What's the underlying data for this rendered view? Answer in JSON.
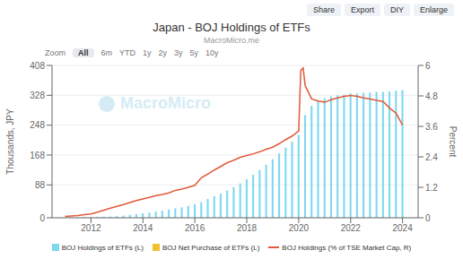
{
  "chart_data": {
    "type": "bar",
    "title": "Japan - BOJ Holdings of ETFs",
    "subtitle": "MacroMicro.me",
    "ylabel": "Thousands, JPY",
    "y2label": "Percent",
    "annotations": [
      [
        "Share",
        "Export",
        "DIY",
        "Enlarge"
      ],
      [
        "Zoom",
        "All",
        "6m",
        "YTD",
        "1y",
        "2y",
        "3y",
        "5y",
        "10y"
      ],
      [
        "MacroMicro"
      ]
    ],
    "xlim": [
      2010.5,
      2024.6
    ],
    "xticks": [
      2012,
      2014,
      2016,
      2018,
      2020,
      2022,
      2024
    ],
    "ylim": [
      0,
      408
    ],
    "yticks": [
      0,
      88,
      168,
      248,
      328,
      408
    ],
    "y2lim": [
      0,
      6.0
    ],
    "y2ticks": [
      0,
      1.2,
      2.4,
      3.6,
      4.8,
      6
    ],
    "grid": true,
    "series": [
      {
        "name": "BOJ Holdings of ETFs (L)",
        "color": "#7dd8f0",
        "type": "bar",
        "x": [
          2011.0,
          2011.25,
          2011.5,
          2011.75,
          2012.0,
          2012.25,
          2012.5,
          2012.75,
          2013.0,
          2013.25,
          2013.5,
          2013.75,
          2014.0,
          2014.25,
          2014.5,
          2014.75,
          2015.0,
          2015.25,
          2015.5,
          2015.75,
          2016.0,
          2016.25,
          2016.5,
          2016.75,
          2017.0,
          2017.25,
          2017.5,
          2017.75,
          2018.0,
          2018.25,
          2018.5,
          2018.75,
          2019.0,
          2019.25,
          2019.5,
          2019.75,
          2020.0,
          2020.25,
          2020.5,
          2020.75,
          2021.0,
          2021.25,
          2021.5,
          2021.75,
          2022.0,
          2022.25,
          2022.5,
          2022.75,
          2023.0,
          2023.25,
          2023.5,
          2023.75,
          2024.0
        ],
        "values": [
          0.5,
          0.8,
          1.0,
          1.5,
          2.0,
          2.5,
          3.0,
          3.5,
          4.5,
          6.0,
          8.0,
          10.0,
          12.0,
          14.0,
          16.5,
          19.0,
          22.0,
          25.0,
          28.0,
          32.0,
          36.0,
          42.0,
          50.0,
          58.0,
          65.0,
          73.0,
          82.0,
          92.0,
          103.0,
          115.0,
          128.0,
          142.0,
          157.0,
          172.0,
          188.0,
          204.0,
          222.0,
          275.0,
          300.0,
          315.0,
          320.0,
          325.0,
          328.0,
          330.0,
          333.0,
          333.0,
          335.0,
          335.0,
          337.0,
          337.0,
          338.0,
          340.0,
          342.0
        ]
      },
      {
        "name": "BOJ Net Purchase of ETFs (L)",
        "color": "#f0c030",
        "type": "bar",
        "x": [
          2011.0,
          2011.25,
          2011.5,
          2011.75,
          2012.0,
          2012.25,
          2012.5,
          2012.75,
          2013.0,
          2013.25,
          2013.5,
          2013.75,
          2014.0,
          2014.25,
          2014.5,
          2014.75,
          2015.0,
          2015.25,
          2015.5,
          2015.75,
          2016.0,
          2016.25,
          2016.5,
          2016.75,
          2017.0,
          2017.25,
          2017.5,
          2017.75,
          2018.0,
          2018.25,
          2018.5,
          2018.75,
          2019.0,
          2019.25,
          2019.5,
          2019.75,
          2020.0,
          2020.25,
          2020.5,
          2020.75,
          2021.0,
          2021.25,
          2021.5,
          2021.75,
          2022.0,
          2022.25,
          2022.5,
          2022.75,
          2023.0,
          2023.25,
          2023.5,
          2023.75,
          2024.0
        ],
        "values": [
          null,
          null,
          null,
          null,
          null,
          null,
          null,
          null,
          null,
          null,
          null,
          null,
          null,
          null,
          null,
          null,
          null,
          null,
          null,
          null,
          null,
          null,
          null,
          null,
          null,
          null,
          null,
          null,
          null,
          null,
          null,
          null,
          null,
          null,
          null,
          null,
          null,
          null,
          null,
          null,
          null,
          null,
          null,
          null,
          null,
          null,
          null,
          null,
          null,
          null,
          null,
          null,
          null
        ]
      },
      {
        "name": "BOJ Holdings (% of TSE Market Cap, R)",
        "color": "#e05a3a",
        "type": "line",
        "axis": "y2",
        "x": [
          2011.0,
          2011.25,
          2011.5,
          2011.75,
          2012.0,
          2012.25,
          2012.5,
          2012.75,
          2013.0,
          2013.25,
          2013.5,
          2013.75,
          2014.0,
          2014.25,
          2014.5,
          2014.75,
          2015.0,
          2015.25,
          2015.5,
          2015.75,
          2016.0,
          2016.25,
          2016.5,
          2016.75,
          2017.0,
          2017.25,
          2017.5,
          2017.75,
          2018.0,
          2018.25,
          2018.5,
          2018.75,
          2019.0,
          2019.25,
          2019.5,
          2019.75,
          2020.0,
          2020.08,
          2020.17,
          2020.25,
          2020.5,
          2020.75,
          2021.0,
          2021.25,
          2021.5,
          2021.75,
          2022.0,
          2022.25,
          2022.5,
          2022.75,
          2023.0,
          2023.25,
          2023.5,
          2023.75,
          2024.0
        ],
        "values": [
          0.05,
          0.07,
          0.09,
          0.12,
          0.15,
          0.22,
          0.3,
          0.38,
          0.45,
          0.52,
          0.6,
          0.68,
          0.74,
          0.8,
          0.87,
          0.92,
          0.98,
          1.08,
          1.13,
          1.2,
          1.28,
          1.58,
          1.72,
          1.88,
          2.02,
          2.17,
          2.27,
          2.38,
          2.45,
          2.52,
          2.6,
          2.7,
          2.78,
          2.92,
          3.08,
          3.22,
          3.42,
          5.8,
          5.9,
          5.2,
          4.68,
          4.6,
          4.55,
          4.65,
          4.72,
          4.78,
          4.82,
          4.78,
          4.72,
          4.68,
          4.62,
          4.58,
          4.32,
          4.12,
          3.65
        ]
      }
    ]
  }
}
